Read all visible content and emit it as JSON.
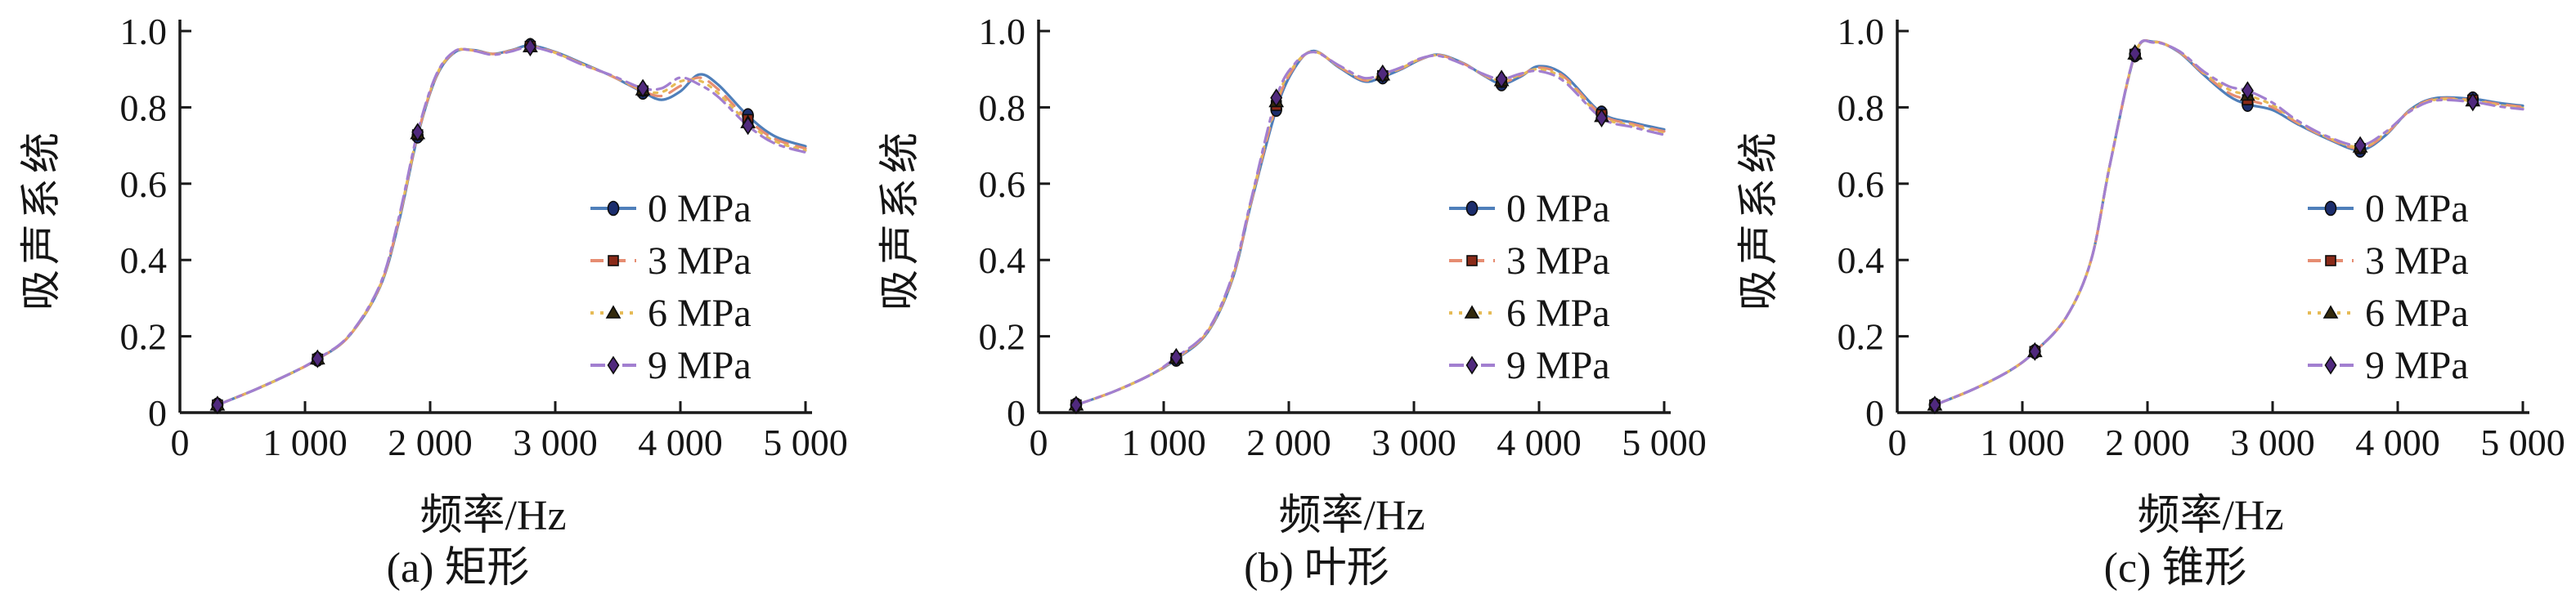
{
  "figure": {
    "background": "#ffffff",
    "axis_color": "#1a1a1a",
    "x_ticks": [
      "0",
      "1 000",
      "2 000",
      "3 000",
      "4 000",
      "5 000"
    ],
    "y_ticks": [
      "0",
      "0.2",
      "0.4",
      "0.6",
      "0.8",
      "1.0"
    ],
    "legend": [
      {
        "label": "0 MPa",
        "color": "#4f7fba",
        "marker": "circle",
        "marker_color": "#1b2d6d",
        "dash": ""
      },
      {
        "label": "3 MPa",
        "color": "#e68d72",
        "marker": "square",
        "marker_color": "#8a2a18",
        "dash": "16 11"
      },
      {
        "label": "6 MPa",
        "color": "#e6bb57",
        "marker": "triangle",
        "marker_color": "#33290c",
        "dash": "4 8"
      },
      {
        "label": "9 MPa",
        "color": "#a27fd0",
        "marker": "diamond",
        "marker_color": "#50297d",
        "dash": "18 8 5 8"
      }
    ]
  },
  "chart_data": [
    {
      "type": "line",
      "title": "(a) 矩形",
      "xlabel": "频率/Hz",
      "ylabel": "吸声系统",
      "xlim": [
        0,
        5000
      ],
      "ylim": [
        0,
        1.0
      ],
      "legend_position": "inside-right",
      "grid": false,
      "x": [
        300,
        600,
        900,
        1100,
        1350,
        1600,
        1750,
        1900,
        2050,
        2200,
        2350,
        2500,
        2650,
        2800,
        3000,
        3200,
        3450,
        3700,
        3850,
        4000,
        4150,
        4300,
        4540,
        4750,
        5000
      ],
      "series": [
        {
          "name": "0 MPa",
          "values": [
            0.02,
            0.06,
            0.105,
            0.14,
            0.2,
            0.33,
            0.5,
            0.725,
            0.88,
            0.945,
            0.95,
            0.94,
            0.95,
            0.962,
            0.945,
            0.918,
            0.882,
            0.84,
            0.82,
            0.842,
            0.886,
            0.86,
            0.778,
            0.725,
            0.698
          ]
        },
        {
          "name": "3 MPa",
          "values": [
            0.02,
            0.06,
            0.105,
            0.14,
            0.2,
            0.332,
            0.505,
            0.728,
            0.882,
            0.946,
            0.949,
            0.94,
            0.949,
            0.96,
            0.944,
            0.916,
            0.882,
            0.843,
            0.83,
            0.856,
            0.878,
            0.848,
            0.768,
            0.718,
            0.692
          ]
        },
        {
          "name": "6 MPa",
          "values": [
            0.02,
            0.06,
            0.105,
            0.141,
            0.201,
            0.334,
            0.508,
            0.731,
            0.884,
            0.947,
            0.949,
            0.939,
            0.948,
            0.959,
            0.943,
            0.915,
            0.883,
            0.846,
            0.84,
            0.868,
            0.87,
            0.838,
            0.76,
            0.712,
            0.687
          ]
        },
        {
          "name": "9 MPa",
          "values": [
            0.02,
            0.06,
            0.105,
            0.141,
            0.202,
            0.336,
            0.512,
            0.735,
            0.886,
            0.948,
            0.948,
            0.938,
            0.947,
            0.958,
            0.942,
            0.914,
            0.884,
            0.85,
            0.85,
            0.878,
            0.86,
            0.828,
            0.752,
            0.706,
            0.682
          ]
        }
      ],
      "marker_x": [
        300,
        1100,
        1900,
        2800,
        3700,
        4540
      ]
    },
    {
      "type": "line",
      "title": "(b) 叶形",
      "xlabel": "频率/Hz",
      "ylabel": "吸声系统",
      "xlim": [
        0,
        5000
      ],
      "ylim": [
        0,
        1.0
      ],
      "legend_position": "inside-right",
      "grid": false,
      "x": [
        300,
        600,
        900,
        1100,
        1350,
        1550,
        1700,
        1900,
        2050,
        2200,
        2400,
        2600,
        2750,
        2900,
        3050,
        3200,
        3400,
        3550,
        3700,
        3850,
        4000,
        4200,
        4500,
        4750,
        5000
      ],
      "series": [
        {
          "name": "0 MPa",
          "values": [
            0.02,
            0.055,
            0.1,
            0.14,
            0.21,
            0.35,
            0.55,
            0.795,
            0.905,
            0.948,
            0.905,
            0.868,
            0.88,
            0.9,
            0.925,
            0.938,
            0.915,
            0.885,
            0.862,
            0.88,
            0.908,
            0.885,
            0.785,
            0.76,
            0.742
          ]
        },
        {
          "name": "3 MPa",
          "values": [
            0.02,
            0.055,
            0.1,
            0.142,
            0.212,
            0.353,
            0.553,
            0.805,
            0.908,
            0.947,
            0.907,
            0.871,
            0.883,
            0.902,
            0.926,
            0.937,
            0.914,
            0.886,
            0.866,
            0.883,
            0.904,
            0.88,
            0.781,
            0.756,
            0.737
          ]
        },
        {
          "name": "6 MPa",
          "values": [
            0.02,
            0.055,
            0.1,
            0.143,
            0.213,
            0.356,
            0.557,
            0.815,
            0.912,
            0.946,
            0.908,
            0.874,
            0.885,
            0.903,
            0.927,
            0.936,
            0.913,
            0.887,
            0.87,
            0.885,
            0.9,
            0.874,
            0.776,
            0.752,
            0.732
          ]
        },
        {
          "name": "9 MPa",
          "values": [
            0.02,
            0.055,
            0.1,
            0.145,
            0.215,
            0.36,
            0.56,
            0.825,
            0.915,
            0.945,
            0.91,
            0.877,
            0.888,
            0.905,
            0.928,
            0.935,
            0.912,
            0.888,
            0.874,
            0.888,
            0.895,
            0.868,
            0.772,
            0.748,
            0.728
          ]
        }
      ],
      "marker_x": [
        300,
        1100,
        1900,
        2750,
        3700,
        4500
      ]
    },
    {
      "type": "line",
      "title": "(c) 锥形",
      "xlabel": "频率/Hz",
      "ylabel": "吸声系统",
      "xlim": [
        0,
        5000
      ],
      "ylim": [
        0,
        1.0
      ],
      "legend_position": "inside-right",
      "grid": false,
      "x": [
        300,
        600,
        900,
        1100,
        1350,
        1550,
        1700,
        1900,
        2050,
        2250,
        2450,
        2650,
        2800,
        3000,
        3200,
        3450,
        3700,
        3900,
        4100,
        4300,
        4600,
        4800,
        5000
      ],
      "series": [
        {
          "name": "0 MPa",
          "values": [
            0.02,
            0.06,
            0.11,
            0.16,
            0.25,
            0.4,
            0.65,
            0.938,
            0.972,
            0.945,
            0.885,
            0.83,
            0.808,
            0.793,
            0.756,
            0.716,
            0.688,
            0.726,
            0.794,
            0.824,
            0.822,
            0.812,
            0.804
          ]
        },
        {
          "name": "3 MPa",
          "values": [
            0.02,
            0.06,
            0.11,
            0.16,
            0.25,
            0.4,
            0.65,
            0.939,
            0.972,
            0.946,
            0.888,
            0.838,
            0.82,
            0.8,
            0.759,
            0.718,
            0.692,
            0.729,
            0.792,
            0.822,
            0.819,
            0.809,
            0.801
          ]
        },
        {
          "name": "6 MPa",
          "values": [
            0.02,
            0.06,
            0.11,
            0.16,
            0.25,
            0.4,
            0.65,
            0.94,
            0.971,
            0.947,
            0.891,
            0.847,
            0.832,
            0.806,
            0.762,
            0.72,
            0.696,
            0.732,
            0.791,
            0.82,
            0.817,
            0.806,
            0.798
          ]
        },
        {
          "name": "9 MPa",
          "values": [
            0.02,
            0.06,
            0.11,
            0.16,
            0.25,
            0.4,
            0.65,
            0.941,
            0.97,
            0.948,
            0.894,
            0.855,
            0.844,
            0.812,
            0.765,
            0.722,
            0.7,
            0.735,
            0.79,
            0.818,
            0.814,
            0.803,
            0.795
          ]
        }
      ],
      "marker_x": [
        300,
        1100,
        1900,
        2800,
        3700,
        4600
      ]
    }
  ]
}
